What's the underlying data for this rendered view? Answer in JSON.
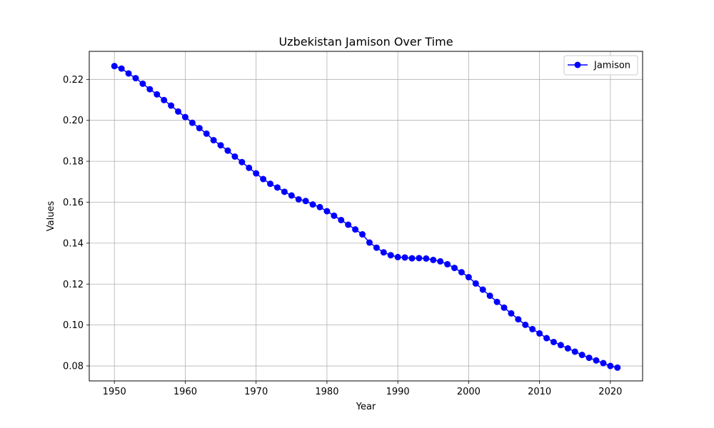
{
  "chart_data": {
    "type": "line",
    "title": "Uzbekistan Jamison Over Time",
    "xlabel": "Year",
    "ylabel": "Values",
    "xlim": [
      1946.45,
      2024.55
    ],
    "ylim": [
      0.0727,
      0.2337
    ],
    "xticks": [
      1950,
      1960,
      1970,
      1980,
      1990,
      2000,
      2010,
      2020
    ],
    "yticks": [
      0.08,
      0.1,
      0.12,
      0.14,
      0.16,
      0.18,
      0.2,
      0.22
    ],
    "ytick_labels": [
      "0.08",
      "0.10",
      "0.12",
      "0.14",
      "0.16",
      "0.18",
      "0.20",
      "0.22"
    ],
    "grid": true,
    "legend_position": "top-right",
    "x": [
      1950,
      1951,
      1952,
      1953,
      1954,
      1955,
      1956,
      1957,
      1958,
      1959,
      1960,
      1961,
      1962,
      1963,
      1964,
      1965,
      1966,
      1967,
      1968,
      1969,
      1970,
      1971,
      1972,
      1973,
      1974,
      1975,
      1976,
      1977,
      1978,
      1979,
      1980,
      1981,
      1982,
      1983,
      1984,
      1985,
      1986,
      1987,
      1988,
      1989,
      1990,
      1991,
      1992,
      1993,
      1994,
      1995,
      1996,
      1997,
      1998,
      1999,
      2000,
      2001,
      2002,
      2003,
      2004,
      2005,
      2006,
      2007,
      2008,
      2009,
      2010,
      2011,
      2012,
      2013,
      2014,
      2015,
      2016,
      2017,
      2018,
      2019,
      2020,
      2021
    ],
    "series": [
      {
        "name": "Jamison",
        "color": "#0000ff",
        "marker": "circle",
        "values": [
          0.2265,
          0.2253,
          0.2229,
          0.2206,
          0.2179,
          0.2152,
          0.2127,
          0.2099,
          0.2072,
          0.2043,
          0.2016,
          0.1988,
          0.1962,
          0.1935,
          0.1903,
          0.1878,
          0.1852,
          0.1823,
          0.1796,
          0.1768,
          0.1741,
          0.1713,
          0.169,
          0.1672,
          0.1651,
          0.1633,
          0.1614,
          0.1606,
          0.1589,
          0.1576,
          0.1556,
          0.1534,
          0.1513,
          0.149,
          0.1467,
          0.1443,
          0.1403,
          0.1378,
          0.1355,
          0.1341,
          0.1332,
          0.133,
          0.1326,
          0.1327,
          0.1325,
          0.1318,
          0.1311,
          0.1297,
          0.1279,
          0.1258,
          0.1234,
          0.1203,
          0.1173,
          0.1143,
          0.1113,
          0.1085,
          0.1057,
          0.1028,
          0.1001,
          0.098,
          0.0959,
          0.0936,
          0.0917,
          0.0902,
          0.0886,
          0.087,
          0.0854,
          0.084,
          0.0827,
          0.0814,
          0.08,
          0.0792
        ]
      }
    ]
  }
}
